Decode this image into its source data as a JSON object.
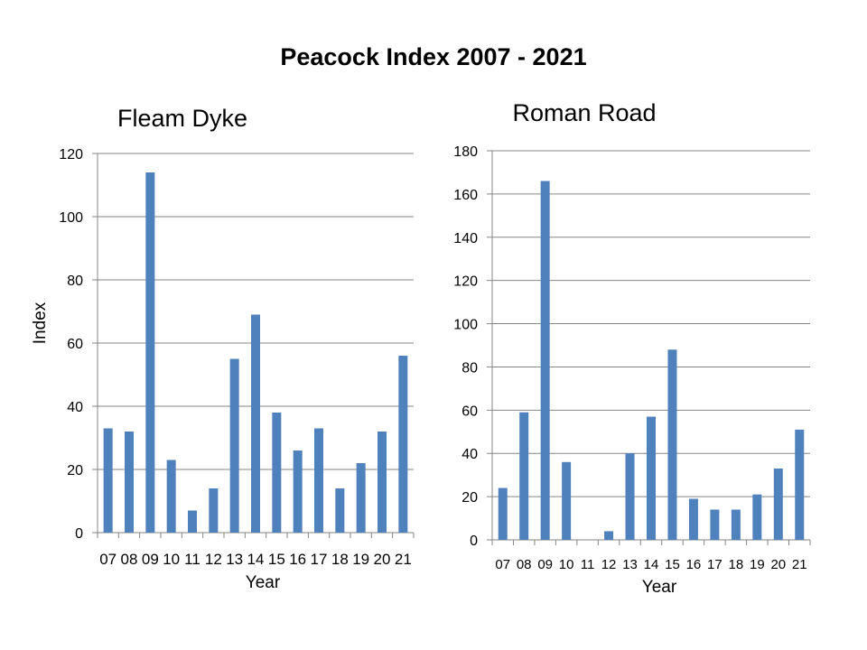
{
  "title": "Peacock Index 2007 - 2021",
  "chart_data": [
    {
      "type": "bar",
      "title": "Fleam Dyke",
      "xlabel": "Year",
      "ylabel": "Index",
      "ylim": [
        0,
        120
      ],
      "ytick_step": 20,
      "grid": true,
      "categories": [
        "07",
        "08",
        "09",
        "10",
        "11",
        "12",
        "13",
        "14",
        "15",
        "16",
        "17",
        "18",
        "19",
        "20",
        "21"
      ],
      "values": [
        33,
        32,
        114,
        23,
        7,
        14,
        55,
        69,
        38,
        26,
        33,
        14,
        22,
        32,
        56
      ],
      "color": "#4F81BD"
    },
    {
      "type": "bar",
      "title": "Roman Road",
      "xlabel": "Year",
      "ylabel": "",
      "ylim": [
        0,
        180
      ],
      "ytick_step": 20,
      "grid": true,
      "categories": [
        "07",
        "08",
        "09",
        "10",
        "11",
        "12",
        "13",
        "14",
        "15",
        "16",
        "17",
        "18",
        "19",
        "20",
        "21"
      ],
      "values": [
        24,
        59,
        166,
        36,
        0,
        4,
        40,
        57,
        88,
        19,
        14,
        14,
        21,
        33,
        51
      ],
      "color": "#4F81BD"
    }
  ]
}
